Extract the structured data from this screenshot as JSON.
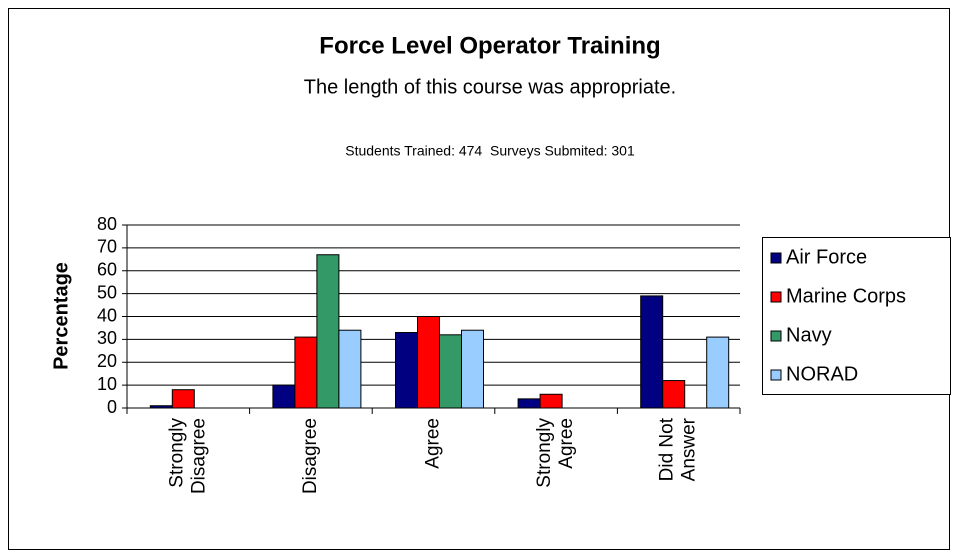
{
  "chart_data": {
    "type": "bar",
    "title": "Force Level Operator Training",
    "subtitle": "The length of this course was appropriate.",
    "annotation": "Students Trained: 474  Surveys Submited: 301",
    "y_label": "Percentage",
    "categories": [
      [
        "Strongly",
        "Disagree"
      ],
      [
        "Disagree"
      ],
      [
        "Agree"
      ],
      [
        "Strongly",
        "Agree"
      ],
      [
        "Did Not",
        "Answer"
      ]
    ],
    "series": [
      {
        "name": "Air Force",
        "color": "#000080",
        "values": [
          1,
          10,
          33,
          4,
          49
        ]
      },
      {
        "name": "Marine Corps",
        "color": "#ff0000",
        "values": [
          8,
          31,
          40,
          6,
          12
        ]
      },
      {
        "name": "Navy",
        "color": "#339966",
        "values": [
          0,
          67,
          32,
          0,
          0
        ]
      },
      {
        "name": "NORAD",
        "color": "#99ccff",
        "values": [
          0,
          34,
          34,
          0,
          31
        ]
      }
    ],
    "ylim": [
      0,
      80
    ],
    "yticks": [
      0,
      10,
      20,
      30,
      40,
      50,
      60,
      70,
      80
    ],
    "grid": true,
    "legend": "right"
  }
}
